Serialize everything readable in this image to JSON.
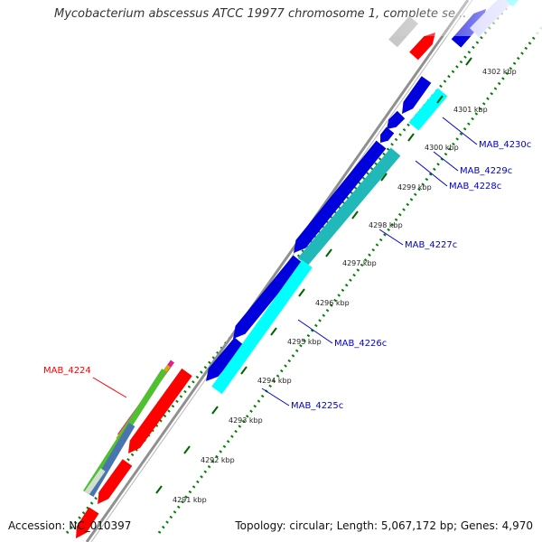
{
  "title": "Mycobacterium abscessus ATCC 19977 chromosome 1, complete se...",
  "footer": {
    "accession": "Accession: NC_010397",
    "summary": "Topology: circular; Length: 5,067,172 bp; Genes: 4,970"
  },
  "colors": {
    "forward_cds": "#ff0000",
    "reverse_cds": "#0000dd",
    "blast_hit": "#00ffff",
    "backbone": "#909090",
    "tick": "#008000",
    "gene_label_reverse": "#0000cc",
    "gene_label_forward": "#ff0000"
  },
  "kbp_ticks": [
    "4291 kbp",
    "4292 kbp",
    "4293 kbp",
    "4294 kbp",
    "4295 kbp",
    "4296 kbp",
    "4297 kbp",
    "4298 kbp",
    "4299 kbp",
    "4300 kbp",
    "4301 kbp",
    "4302 kbp"
  ],
  "gene_labels": [
    "MAB_4230c",
    "MAB_4229c",
    "MAB_4228c",
    "MAB_4227c",
    "MAB_4226c",
    "MAB_4225c",
    "MAB_4224"
  ]
}
